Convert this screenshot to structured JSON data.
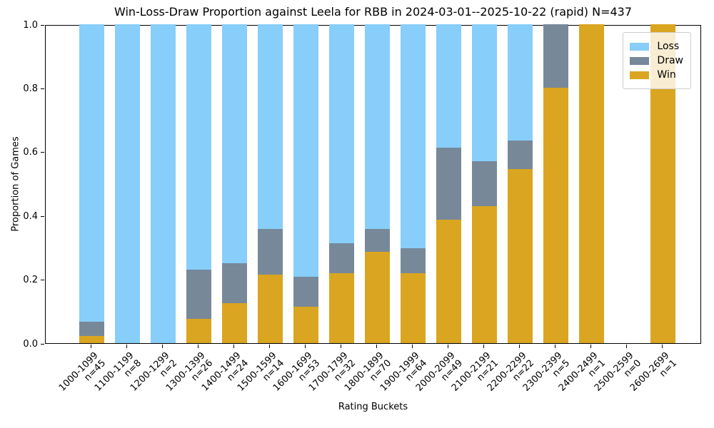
{
  "chart_data": {
    "type": "bar",
    "stacked": true,
    "title": "Win-Loss-Draw Proportion against Leela for RBB in 2024-03-01--2025-10-22 (rapid) N=437",
    "xlabel": "Rating Buckets",
    "ylabel": "Proportion of Games",
    "ylim": [
      0.0,
      1.0
    ],
    "yticks": [
      0.0,
      0.2,
      0.4,
      0.6,
      0.8,
      1.0
    ],
    "grid": false,
    "legend_position": "upper right",
    "total_n": 437,
    "categories": [
      {
        "range": "1000-1099",
        "n_label": "n=45",
        "n": 45
      },
      {
        "range": "1100-1199",
        "n_label": "n=8",
        "n": 8
      },
      {
        "range": "1200-1299",
        "n_label": "n=2",
        "n": 2
      },
      {
        "range": "1300-1399",
        "n_label": "n=26",
        "n": 26
      },
      {
        "range": "1400-1499",
        "n_label": "n=24",
        "n": 24
      },
      {
        "range": "1500-1599",
        "n_label": "n=14",
        "n": 14
      },
      {
        "range": "1600-1699",
        "n_label": "n=53",
        "n": 53
      },
      {
        "range": "1700-1799",
        "n_label": "n=32",
        "n": 32
      },
      {
        "range": "1800-1899",
        "n_label": "n=70",
        "n": 70
      },
      {
        "range": "1900-1999",
        "n_label": "n=64",
        "n": 64
      },
      {
        "range": "2000-2099",
        "n_label": "n=49",
        "n": 49
      },
      {
        "range": "2100-2199",
        "n_label": "n=21",
        "n": 21
      },
      {
        "range": "2200-2299",
        "n_label": "n=22",
        "n": 22
      },
      {
        "range": "2300-2399",
        "n_label": "n=5",
        "n": 5
      },
      {
        "range": "2400-2499",
        "n_label": "n=1",
        "n": 1
      },
      {
        "range": "2500-2599",
        "n_label": "n=0",
        "n": 0
      },
      {
        "range": "2600-2699",
        "n_label": "n=1",
        "n": 1
      }
    ],
    "series": [
      {
        "name": "Loss",
        "color": "#87CEFA",
        "values": [
          0.9333,
          1.0,
          1.0,
          0.7692,
          0.75,
          0.6429,
          0.7925,
          0.6875,
          0.6429,
          0.7031,
          0.3878,
          0.4286,
          0.3636,
          0.0,
          0.0,
          0.0,
          0.0
        ]
      },
      {
        "name": "Draw",
        "color": "#778899",
        "values": [
          0.0444,
          0.0,
          0.0,
          0.1538,
          0.125,
          0.1429,
          0.0943,
          0.0938,
          0.0714,
          0.0781,
          0.2245,
          0.1429,
          0.0909,
          0.2,
          0.0,
          0.0,
          0.0
        ]
      },
      {
        "name": "Win",
        "color": "#DAA520",
        "values": [
          0.0222,
          0.0,
          0.0,
          0.0769,
          0.125,
          0.2143,
          0.1132,
          0.2188,
          0.2857,
          0.2188,
          0.3878,
          0.4286,
          0.5455,
          0.8,
          1.0,
          0.0,
          1.0
        ]
      }
    ]
  }
}
